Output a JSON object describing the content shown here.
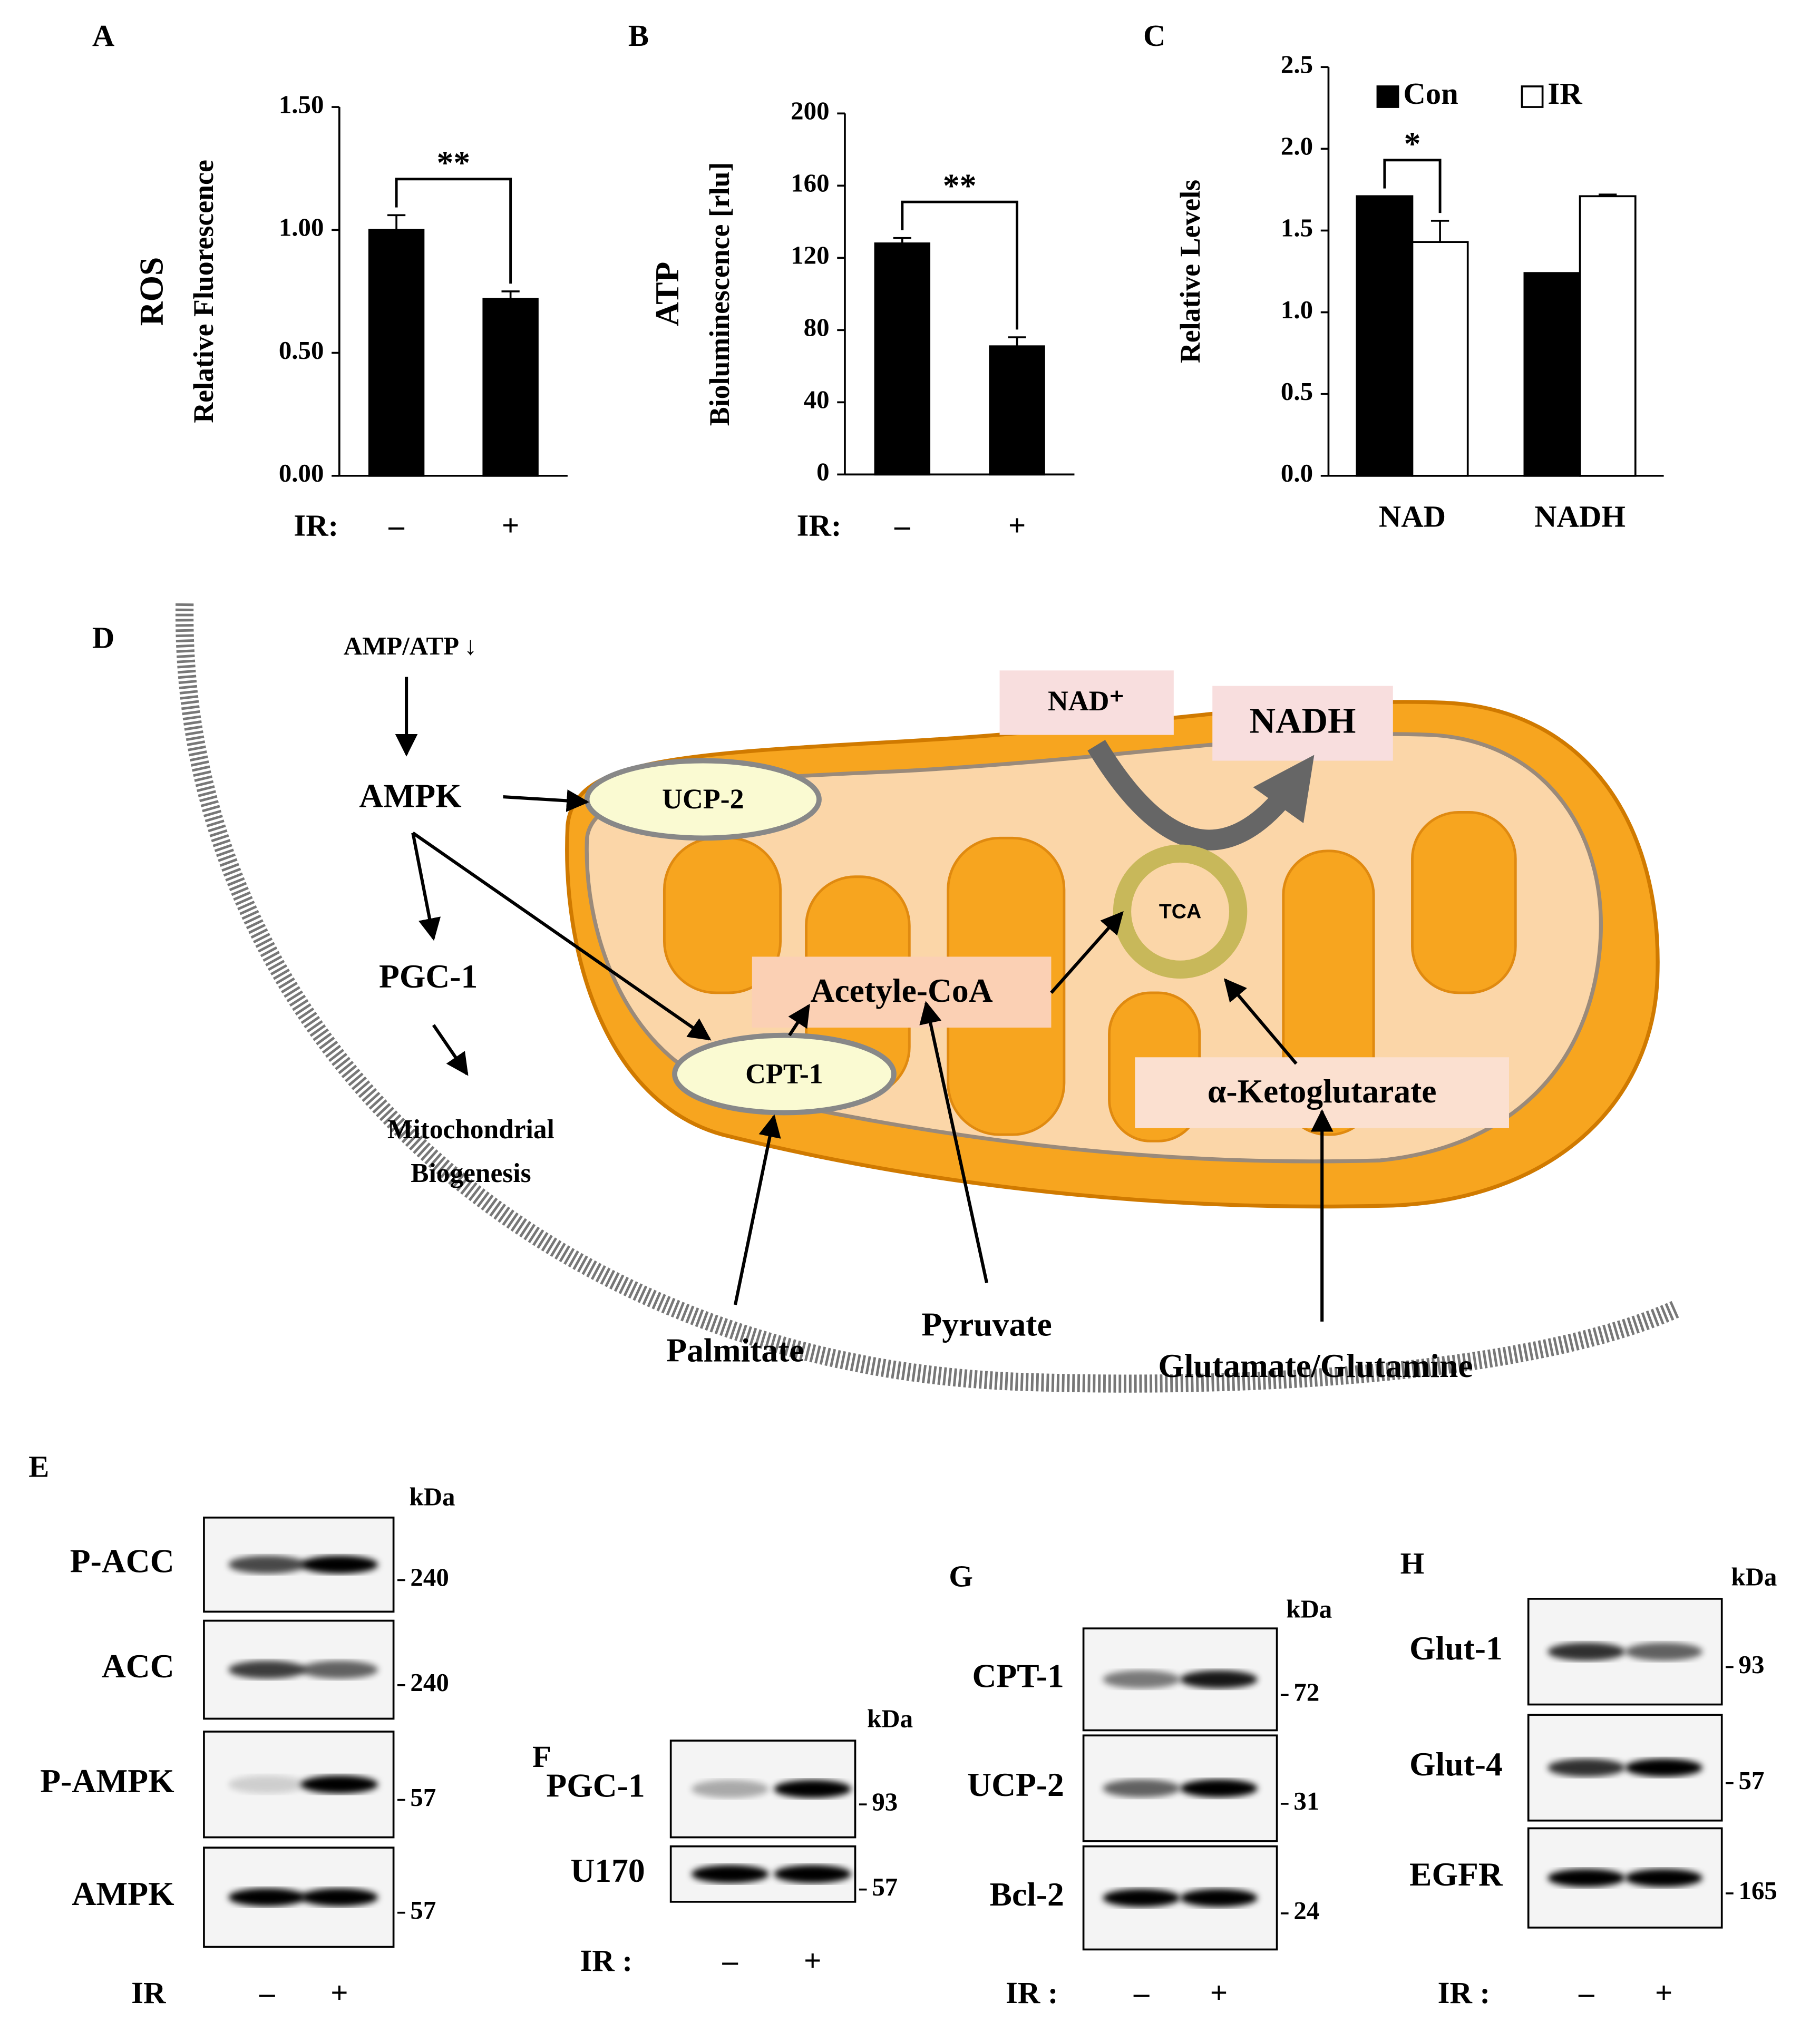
{
  "chart_data": [
    {
      "type": "bar",
      "panel": "A",
      "ylabel": [
        "ROS",
        "Relative Fluorescence"
      ],
      "xlabel": "IR:",
      "categories": [
        "–",
        "+"
      ],
      "values": [
        1.0,
        0.72
      ],
      "errors": [
        0.06,
        0.03
      ],
      "color": "#000000",
      "ylim": [
        0,
        1.5
      ],
      "yticks": [
        {
          "value": 0,
          "label": "0.00"
        },
        {
          "value": 0.5,
          "label": "0.50"
        },
        {
          "value": 1,
          "label": "1.00"
        },
        {
          "value": 1.5,
          "label": "1.50"
        }
      ],
      "significance": "**"
    },
    {
      "type": "bar",
      "panel": "B",
      "ylabel": [
        "ATP",
        "Bioluminescence [rlu]"
      ],
      "xlabel": "IR:",
      "categories": [
        "–",
        "+"
      ],
      "values": [
        128,
        71
      ],
      "errors": [
        3,
        5
      ],
      "color": "#000000",
      "ylim": [
        0,
        200
      ],
      "yticks": [
        0,
        40,
        80,
        120,
        160,
        200
      ],
      "significance": "**"
    },
    {
      "type": "bar",
      "panel": "C",
      "ylabel": [
        "Relative Levels"
      ],
      "categories": [
        "NAD",
        "NADH"
      ],
      "series": [
        {
          "name": "Con",
          "color": "#000000",
          "values": [
            1.71,
            1.24
          ]
        },
        {
          "name": "IR",
          "color": "#ffffff",
          "values": [
            1.43,
            1.71
          ],
          "errors": [
            0.13,
            0.01
          ]
        }
      ],
      "ylim": [
        0,
        2.5
      ],
      "yticks": [
        {
          "value": 0,
          "label": "0.0"
        },
        {
          "value": 0.5,
          "label": "0.5"
        },
        {
          "value": 1,
          "label": "1.0"
        },
        {
          "value": 1.5,
          "label": "1.5"
        },
        {
          "value": 2,
          "label": "2.0"
        },
        {
          "value": 2.5,
          "label": "2.5"
        }
      ],
      "legend": "top",
      "significance": "*"
    }
  ],
  "diagram": {
    "panel": "D",
    "labels": {
      "amp_atp": "AMP/ATP ↓",
      "ampk": "AMPK",
      "pgc1": "PGC-1",
      "biogenesis": [
        "Mitochondrial",
        "Biogenesis"
      ],
      "ucp2": "UCP-2",
      "cpt1": "CPT-1",
      "acetyl_coa": "Acetyle-CoA",
      "tca": "TCA",
      "nad": "NAD⁺",
      "nadh": "NADH",
      "akg": "α-Ketoglutarate",
      "palmitate": "Palmitate",
      "pyruvate": "Pyruvate",
      "glutamate": "Glutamate/Glutamine"
    }
  },
  "blots": [
    {
      "panel": "E",
      "unit": "kDa",
      "treatment": "IR",
      "lanes": [
        "–",
        "+"
      ],
      "rows": [
        {
          "name": "P-ACC",
          "marker": 240
        },
        {
          "name": "ACC",
          "marker": 240
        },
        {
          "name": "P-AMPK",
          "marker": 57
        },
        {
          "name": "AMPK",
          "marker": 57
        }
      ]
    },
    {
      "panel": "F",
      "unit": "kDa",
      "treatment": "IR :",
      "lanes": [
        "–",
        "+"
      ],
      "rows": [
        {
          "name": "PGC-1",
          "marker": 93
        },
        {
          "name": "U170",
          "marker": 57
        }
      ]
    },
    {
      "panel": "G",
      "unit": "kDa",
      "treatment": "IR :",
      "lanes": [
        "–",
        "+"
      ],
      "rows": [
        {
          "name": "CPT-1",
          "marker": 72
        },
        {
          "name": "UCP-2",
          "marker": 31
        },
        {
          "name": "Bcl-2",
          "marker": 24
        }
      ]
    },
    {
      "panel": "H",
      "unit": "kDa",
      "treatment": "IR :",
      "lanes": [
        "–",
        "+"
      ],
      "rows": [
        {
          "name": "Glut-1",
          "marker": 93
        },
        {
          "name": "Glut-4",
          "marker": 57
        },
        {
          "name": "EGFR",
          "marker": 165
        }
      ]
    }
  ]
}
